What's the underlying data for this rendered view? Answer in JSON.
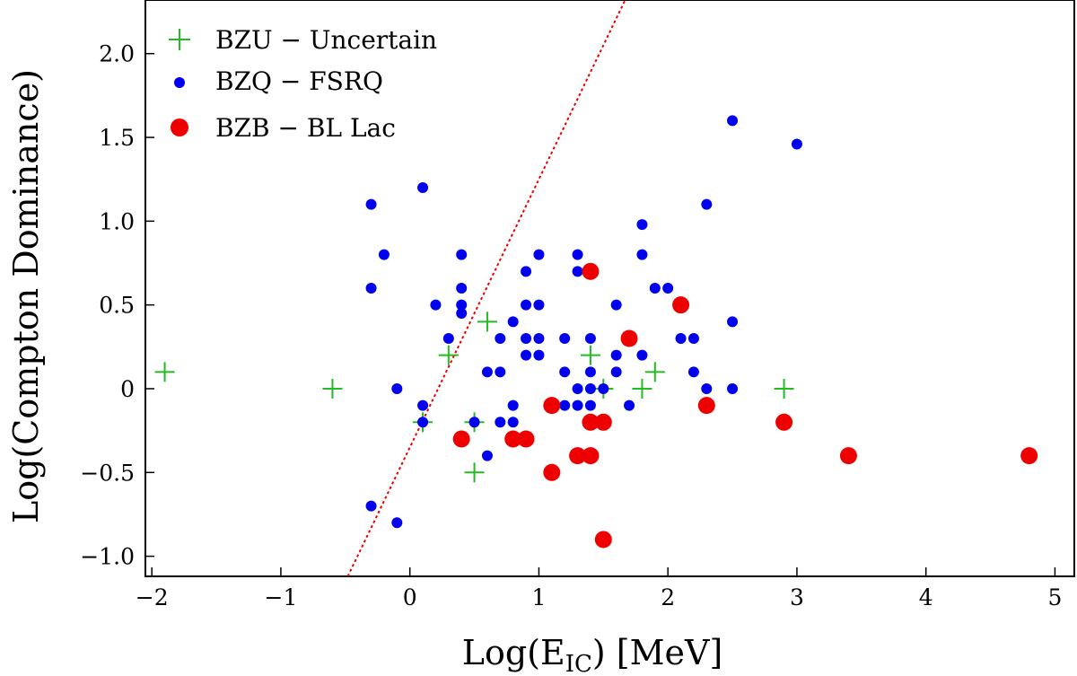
{
  "chart_data": {
    "type": "scatter",
    "title": "",
    "xlabel": "Log(E",
    "xlabel_sub": "IC",
    "xlabel_tail": ") [MeV]",
    "ylabel": "Log(Compton Dominance)",
    "xlim": [
      -2.05,
      5.15
    ],
    "ylim": [
      -1.12,
      2.32
    ],
    "xticks": [
      -2,
      -1,
      0,
      1,
      2,
      3,
      4,
      5
    ],
    "xtick_labels": [
      "−2",
      "−1",
      "0",
      "1",
      "2",
      "3",
      "4",
      "5"
    ],
    "yticks": [
      -1.0,
      -0.5,
      0,
      0.5,
      1.0,
      1.5,
      2.0
    ],
    "ytick_labels": [
      "−1.0",
      "−0.5",
      "0",
      "0.5",
      "1.0",
      "1.5",
      "2.0"
    ],
    "grid": false,
    "legend_position": "top-left",
    "colors": {
      "bzu": "#22bb22",
      "bzq": "#0000ee",
      "bzb": "#ee0000",
      "line": "#ee0000"
    },
    "series": [
      {
        "name": "BZU − Uncertain",
        "key": "bzu",
        "marker": "plus",
        "points": [
          [
            -1.9,
            0.1
          ],
          [
            -0.6,
            0.0
          ],
          [
            0.1,
            -0.2
          ],
          [
            0.3,
            0.2
          ],
          [
            0.5,
            -0.5
          ],
          [
            0.5,
            -0.2
          ],
          [
            0.6,
            0.4
          ],
          [
            1.4,
            0.2
          ],
          [
            1.5,
            0.0
          ],
          [
            1.8,
            0.0
          ],
          [
            1.9,
            0.1
          ],
          [
            2.9,
            0.0
          ]
        ]
      },
      {
        "name": "BZQ − FSRQ",
        "key": "bzq",
        "marker": "small-dot",
        "points": [
          [
            -0.3,
            1.1
          ],
          [
            -0.3,
            0.6
          ],
          [
            -0.3,
            -0.7
          ],
          [
            -0.2,
            0.8
          ],
          [
            -0.1,
            0.0
          ],
          [
            -0.1,
            -0.8
          ],
          [
            0.1,
            1.2
          ],
          [
            0.1,
            -0.1
          ],
          [
            0.1,
            -0.2
          ],
          [
            0.2,
            0.5
          ],
          [
            0.3,
            0.3
          ],
          [
            0.4,
            0.8
          ],
          [
            0.4,
            0.6
          ],
          [
            0.4,
            0.5
          ],
          [
            0.4,
            0.45
          ],
          [
            0.5,
            -0.2
          ],
          [
            0.6,
            0.1
          ],
          [
            0.6,
            -0.4
          ],
          [
            0.7,
            0.3
          ],
          [
            0.7,
            0.1
          ],
          [
            0.7,
            -0.2
          ],
          [
            0.8,
            0.4
          ],
          [
            0.8,
            -0.1
          ],
          [
            0.8,
            -0.2
          ],
          [
            0.9,
            0.7
          ],
          [
            0.9,
            0.5
          ],
          [
            0.9,
            0.3
          ],
          [
            0.9,
            0.2
          ],
          [
            1.0,
            0.8
          ],
          [
            1.0,
            0.5
          ],
          [
            1.0,
            0.3
          ],
          [
            1.0,
            0.2
          ],
          [
            1.2,
            0.3
          ],
          [
            1.2,
            0.1
          ],
          [
            1.2,
            -0.1
          ],
          [
            1.3,
            0.8
          ],
          [
            1.3,
            0.7
          ],
          [
            1.3,
            0.0
          ],
          [
            1.3,
            -0.1
          ],
          [
            1.4,
            0.3
          ],
          [
            1.4,
            0.1
          ],
          [
            1.4,
            0.0
          ],
          [
            1.4,
            -0.1
          ],
          [
            1.5,
            0.0
          ],
          [
            1.6,
            0.5
          ],
          [
            1.6,
            0.2
          ],
          [
            1.6,
            0.1
          ],
          [
            1.7,
            -0.1
          ],
          [
            1.8,
            0.98
          ],
          [
            1.8,
            0.8
          ],
          [
            1.8,
            0.2
          ],
          [
            1.9,
            0.6
          ],
          [
            2.0,
            0.6
          ],
          [
            2.1,
            0.3
          ],
          [
            2.2,
            0.3
          ],
          [
            2.2,
            0.1
          ],
          [
            2.3,
            1.1
          ],
          [
            2.3,
            0.0
          ],
          [
            2.5,
            1.6
          ],
          [
            2.5,
            0.4
          ],
          [
            2.5,
            0.0
          ],
          [
            3.0,
            1.46
          ]
        ]
      },
      {
        "name": "BZB − BL Lac",
        "key": "bzb",
        "marker": "big-dot",
        "points": [
          [
            0.4,
            -0.3
          ],
          [
            0.8,
            -0.3
          ],
          [
            0.9,
            -0.3
          ],
          [
            1.1,
            -0.1
          ],
          [
            1.1,
            -0.5
          ],
          [
            1.3,
            -0.4
          ],
          [
            1.4,
            -0.4
          ],
          [
            1.4,
            -0.2
          ],
          [
            1.4,
            0.7
          ],
          [
            1.5,
            -0.2
          ],
          [
            1.5,
            -0.9
          ],
          [
            1.7,
            0.3
          ],
          [
            2.1,
            0.5
          ],
          [
            2.3,
            -0.1
          ],
          [
            2.9,
            -0.2
          ],
          [
            3.4,
            -0.4
          ],
          [
            4.8,
            -0.4
          ]
        ]
      }
    ],
    "reference_line": {
      "name": "dividing line",
      "style": "dotted",
      "slope": 1.6,
      "intercept": -0.35
    }
  }
}
